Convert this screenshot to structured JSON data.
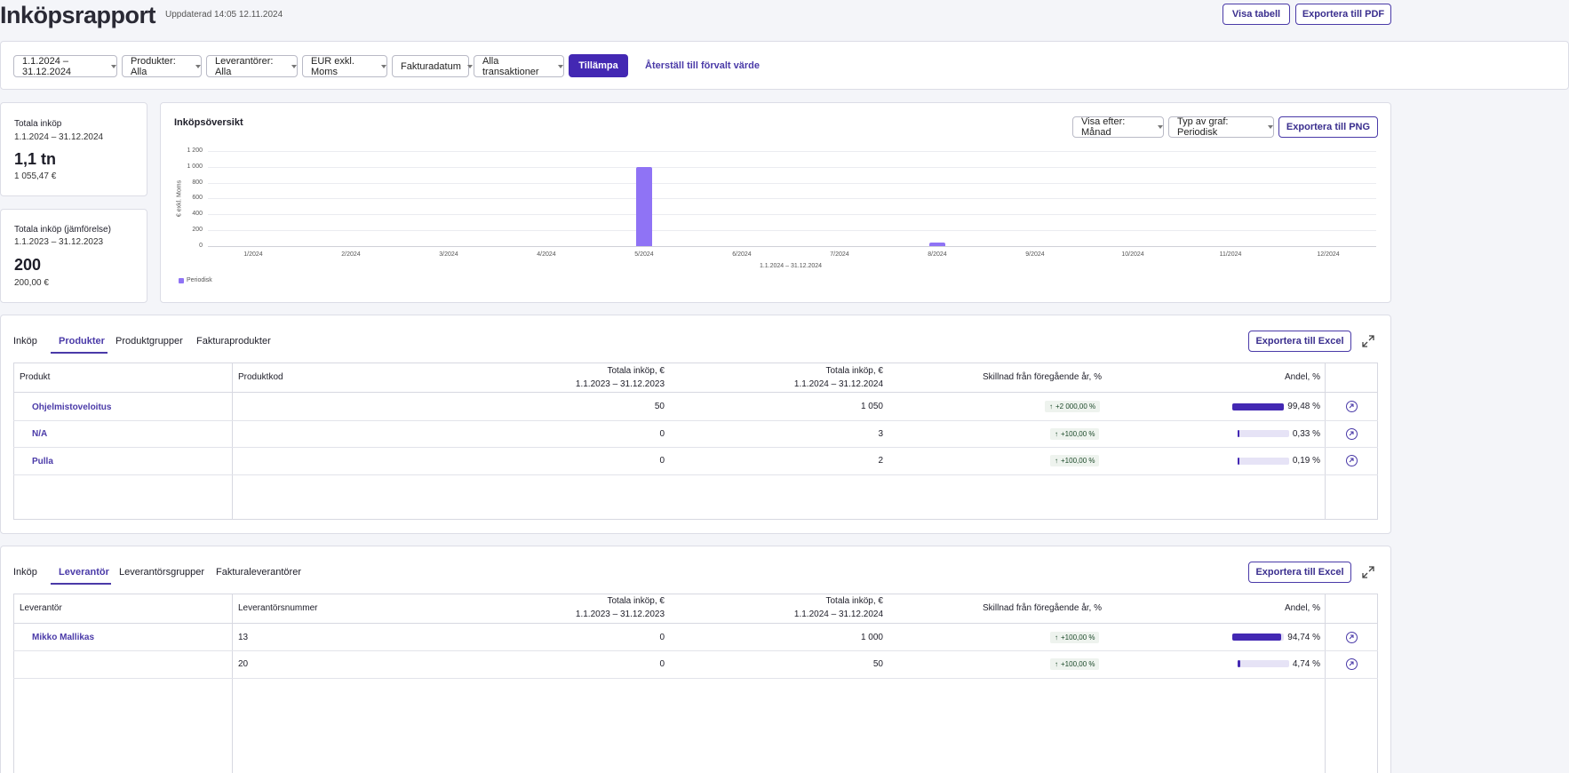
{
  "header": {
    "title": "Inköpsrapport",
    "updated": "Uppdaterad 14:05 12.11.2024",
    "show_table": "Visa tabell",
    "export_pdf": "Exportera till PDF"
  },
  "filters": {
    "date_range": "1.1.2024 – 31.12.2024",
    "products": "Produkter: Alla",
    "suppliers": "Leverantörer: Alla",
    "currency": "EUR exkl. Moms",
    "date_type": "Fakturadatum",
    "transactions": "Alla transaktioner",
    "apply": "Tillämpa",
    "reset": "Återställ till förvalt värde"
  },
  "summary": {
    "total": {
      "title": "Totala inköp",
      "range": "1.1.2024 – 31.12.2024",
      "value": "1,1 tn",
      "exact": "1 055,47 €"
    },
    "compare": {
      "title": "Totala inköp (jämförelse)",
      "range": "1.1.2023 – 31.12.2023",
      "value": "200",
      "exact": "200,00 €"
    }
  },
  "overview": {
    "title": "Inköpsöversikt",
    "view_by": "Visa efter: Månad",
    "chart_type": "Typ av graf: Periodisk",
    "export_png": "Exportera till PNG",
    "bar_color": "#8f73f5"
  },
  "chart_data": {
    "type": "bar",
    "categories": [
      "1/2024",
      "2/2024",
      "3/2024",
      "4/2024",
      "5/2024",
      "6/2024",
      "7/2024",
      "8/2024",
      "9/2024",
      "10/2024",
      "11/2024",
      "12/2024"
    ],
    "series": [
      {
        "name": "Periodisk",
        "values": [
          0,
          0,
          0,
          0,
          1000,
          0,
          0,
          50,
          0,
          0,
          0,
          0
        ]
      }
    ],
    "xlabel": "1.1.2024 – 31.12.2024",
    "ylabel": "€ exkl. Moms",
    "ylim": [
      0,
      1200
    ],
    "yticks": [
      "0",
      "200",
      "400",
      "600",
      "800",
      "1 000",
      "1 200"
    ],
    "grid": true,
    "legend": "bottom-left"
  },
  "products_section": {
    "label": "Inköp",
    "tabs": [
      "Produkter",
      "Produktgrupper",
      "Fakturaprodukter"
    ],
    "export_excel": "Exportera till Excel",
    "columns": {
      "name": "Produkt",
      "code": "Produktkod",
      "prev_title": "Totala inköp, €",
      "prev_range": "1.1.2023 – 31.12.2023",
      "curr_title": "Totala inköp, €",
      "curr_range": "1.1.2024 – 31.12.2024",
      "diff": "Skillnad från föregående år, %",
      "share": "Andel, %"
    },
    "rows": [
      {
        "name": "Ohjelmistoveloitus",
        "code": "",
        "prev": "50",
        "curr": "1 050",
        "diff": "+2 000,00 %",
        "share": "99,48 %",
        "share_value": 99.48
      },
      {
        "name": "N/A",
        "code": "",
        "prev": "0",
        "curr": "3",
        "diff": "+100,00 %",
        "share": "0,33 %",
        "share_value": 0.33
      },
      {
        "name": "Pulla",
        "code": "",
        "prev": "0",
        "curr": "2",
        "diff": "+100,00 %",
        "share": "0,19 %",
        "share_value": 0.19
      }
    ]
  },
  "suppliers_section": {
    "label": "Inköp",
    "tabs": [
      "Leverantör",
      "Leverantörsgrupper",
      "Fakturaleverantörer"
    ],
    "export_excel": "Exportera till Excel",
    "columns": {
      "name": "Leverantör",
      "code": "Leverantörsnummer",
      "prev_title": "Totala inköp, €",
      "prev_range": "1.1.2023 – 31.12.2023",
      "curr_title": "Totala inköp, €",
      "curr_range": "1.1.2024 – 31.12.2024",
      "diff": "Skillnad från föregående år, %",
      "share": "Andel, %"
    },
    "rows": [
      {
        "name": "Mikko Mallikas",
        "code": "13",
        "prev": "0",
        "curr": "1 000",
        "diff": "+100,00 %",
        "share": "94,74 %",
        "share_value": 94.74
      },
      {
        "name": "",
        "code": "20",
        "prev": "0",
        "curr": "50",
        "diff": "+100,00 %",
        "share": "4,74 %",
        "share_value": 4.74
      }
    ]
  }
}
